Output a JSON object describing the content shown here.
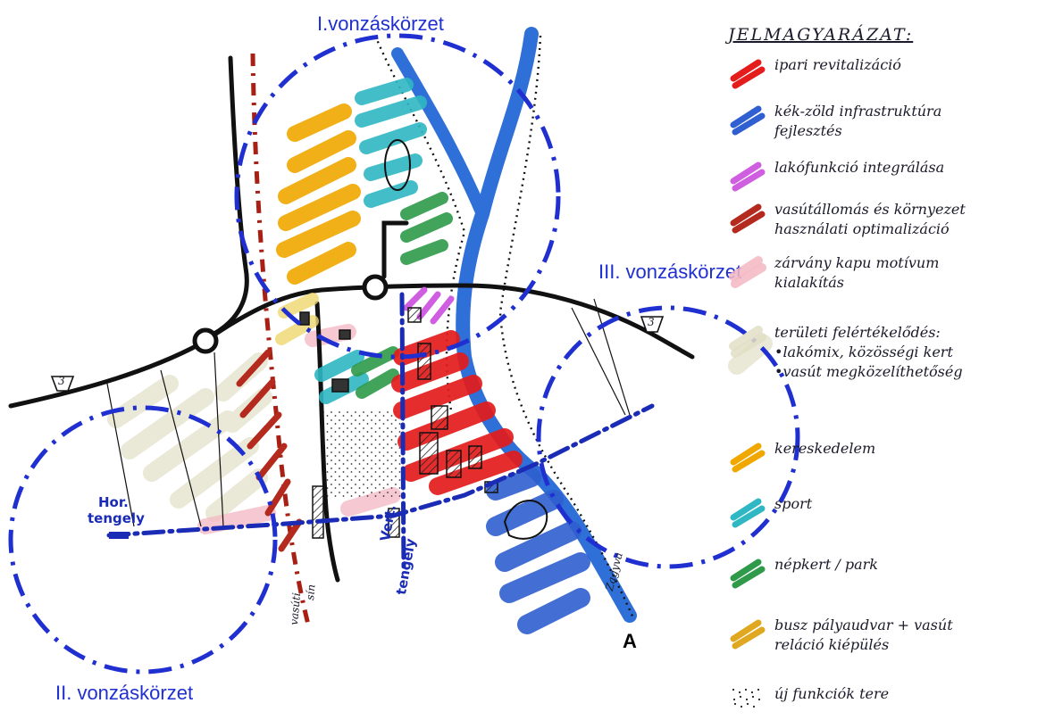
{
  "zones": [
    {
      "name": "I.vonzáskörzet"
    },
    {
      "name": "II. vonzáskörzet"
    },
    {
      "name": "III. vonzáskörzet"
    }
  ],
  "map_labels": {
    "road_number": "3",
    "hor_axis": [
      "Hor.",
      "tengely"
    ],
    "vert_axis": [
      "Vert.",
      "tengely"
    ],
    "railway": [
      "vasúti",
      "sín"
    ],
    "river": "Zagyva",
    "north_arrow": "A"
  },
  "legend": {
    "title": "JELMAGYARÁZAT:",
    "items": [
      {
        "id": "industrial",
        "lines": [
          "ipari revitalizáció"
        ],
        "color": "#e41c1c",
        "pattern": "hatch"
      },
      {
        "id": "blue-green",
        "lines": [
          "kék-zöld infrastruktúra",
          "fejlesztés"
        ],
        "color": "#2f5fd0",
        "pattern": "hatch"
      },
      {
        "id": "residential",
        "lines": [
          "lakófunkció integrálása"
        ],
        "color": "#d05ee0",
        "pattern": "hatch"
      },
      {
        "id": "railway-station",
        "lines": [
          "vasútállomás és környezet",
          "használati optimalizáció"
        ],
        "color": "#b42a1e",
        "pattern": "hatch"
      },
      {
        "id": "gate-motif",
        "lines": [
          "zárvány kapu motívum",
          "kialakítás"
        ],
        "color": "#f4b8c4",
        "pattern": "soft"
      },
      {
        "id": "area-value",
        "lines": [
          "területi felértékelődés:",
          "•lakómix, közösségi kert",
          "•vasút megközelíthetőség"
        ],
        "color": "#e2dfc6",
        "pattern": "soft"
      },
      {
        "id": "commerce",
        "lines": [
          "kereskedelem"
        ],
        "color": "#f0a800",
        "pattern": "hatch"
      },
      {
        "id": "sport",
        "lines": [
          "sport"
        ],
        "color": "#2fb8c4",
        "pattern": "hatch"
      },
      {
        "id": "park",
        "lines": [
          "népkert / park"
        ],
        "color": "#2e9a4a",
        "pattern": "hatch"
      },
      {
        "id": "bus-station",
        "lines": [
          "busz pályaudvar + vasút",
          "reláció kiépülés"
        ],
        "color": "#e0a820",
        "pattern": "hatch"
      },
      {
        "id": "new-functions",
        "lines": [
          "új funkciók tere"
        ],
        "color": "#222222",
        "pattern": "dots"
      }
    ]
  },
  "colors": {
    "zone_circle": "#1f2fd0",
    "axis": "#1a2bb5",
    "road": "#111111",
    "river": "#2f6fd8",
    "rail": "#a82014"
  }
}
